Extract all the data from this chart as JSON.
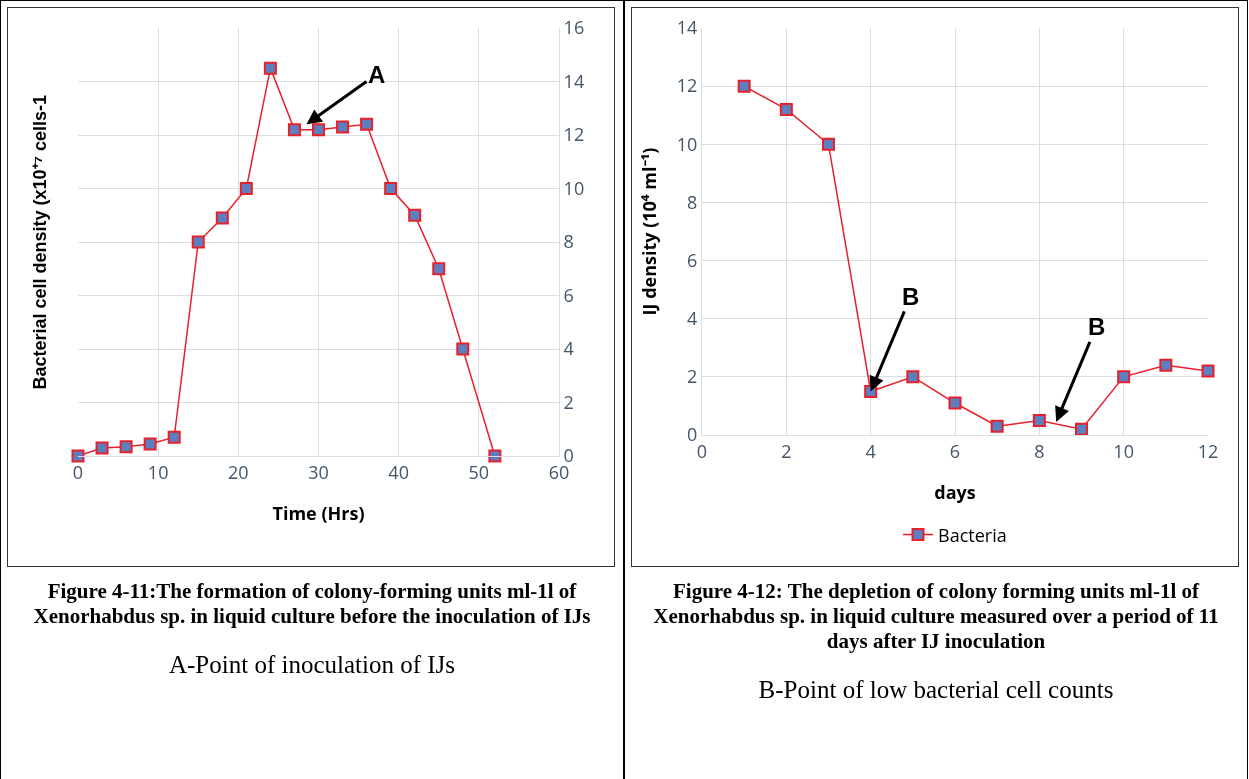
{
  "chart_data": [
    {
      "type": "line",
      "xlabel": "Time (Hrs)",
      "ylabel": "Bacterial cell density (x10⁺⁷ cells-1",
      "x": [
        0,
        3,
        6,
        9,
        12,
        15,
        18,
        21,
        24,
        27,
        30,
        33,
        36,
        39,
        42,
        45,
        48,
        52
      ],
      "series": [
        {
          "color": "#e8202a",
          "values": [
            0,
            0.3,
            0.35,
            0.45,
            0.7,
            8,
            8.9,
            10,
            14.5,
            12.2,
            12.2,
            12.3,
            12.4,
            10,
            9,
            7,
            4,
            0
          ]
        }
      ],
      "xlim": [
        0,
        60
      ],
      "xticks": [
        0,
        10,
        20,
        30,
        40,
        50,
        60
      ],
      "ylim": [
        0,
        16
      ],
      "yticks": [
        0,
        2,
        4,
        6,
        8,
        10,
        12,
        14,
        16
      ],
      "grid": true,
      "legend": false,
      "marker": "square",
      "line_style": "solid",
      "annotations": [
        {
          "text": "A",
          "x": 28.5,
          "y": 12.4
        },
        "Figure 4-11:The formation of colony-forming units ml-1l of Xenorhabdus sp. in liquid culture before the inoculation of IJs",
        "A-Point of inoculation of IJs"
      ]
    },
    {
      "type": "line",
      "xlabel": "days",
      "ylabel": "IJ density (10⁴ ml⁻¹)",
      "x": [
        1,
        2,
        3,
        4,
        5,
        6,
        7,
        8,
        9,
        10,
        11,
        12
      ],
      "series": [
        {
          "name": "Bacteria",
          "color": "#e8202a",
          "values": [
            12,
            11.2,
            10,
            1.5,
            2,
            1.1,
            0.3,
            0.5,
            0.2,
            2,
            2.4,
            2.2
          ]
        }
      ],
      "xlim": [
        0,
        12
      ],
      "xticks": [
        0,
        2,
        4,
        6,
        8,
        10,
        12
      ],
      "ylim": [
        0,
        14
      ],
      "yticks": [
        0,
        2,
        4,
        6,
        8,
        10,
        12,
        14
      ],
      "grid": true,
      "legend": "bottom",
      "marker": "square",
      "line_style": "solid",
      "annotations": [
        {
          "text": "B",
          "x": 4,
          "y": 1.5
        },
        {
          "text": "B",
          "x": 8.4,
          "y": 0.45
        },
        "Figure 4-12: The depletion of colony forming units ml-1l of Xenorhabdus sp. in liquid culture measured over a period of 11 days after IJ inoculation",
        "B-Point of low bacterial cell counts"
      ]
    }
  ]
}
